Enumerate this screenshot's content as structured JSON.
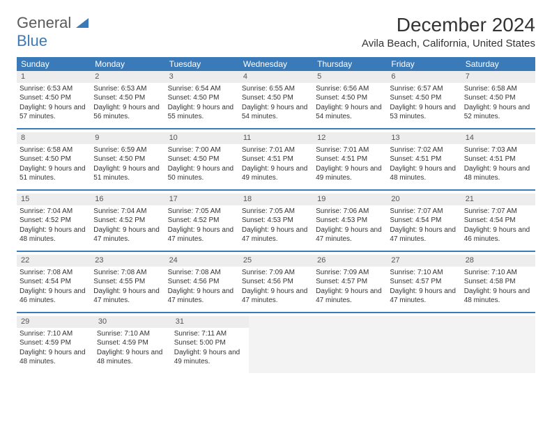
{
  "logo": {
    "general": "General",
    "blue": "Blue"
  },
  "title": "December 2024",
  "location": "Avila Beach, California, United States",
  "day_headers": [
    "Sunday",
    "Monday",
    "Tuesday",
    "Wednesday",
    "Thursday",
    "Friday",
    "Saturday"
  ],
  "colors": {
    "header_bg": "#3a7ab8",
    "logo_blue": "#3a7ab8",
    "daynum_bg": "#ededed",
    "empty_bg": "#f3f3f3",
    "text": "#333"
  },
  "weeks": [
    [
      {
        "n": "1",
        "sr": "6:53 AM",
        "ss": "4:50 PM",
        "dl": "9 hours and 57 minutes."
      },
      {
        "n": "2",
        "sr": "6:53 AM",
        "ss": "4:50 PM",
        "dl": "9 hours and 56 minutes."
      },
      {
        "n": "3",
        "sr": "6:54 AM",
        "ss": "4:50 PM",
        "dl": "9 hours and 55 minutes."
      },
      {
        "n": "4",
        "sr": "6:55 AM",
        "ss": "4:50 PM",
        "dl": "9 hours and 54 minutes."
      },
      {
        "n": "5",
        "sr": "6:56 AM",
        "ss": "4:50 PM",
        "dl": "9 hours and 54 minutes."
      },
      {
        "n": "6",
        "sr": "6:57 AM",
        "ss": "4:50 PM",
        "dl": "9 hours and 53 minutes."
      },
      {
        "n": "7",
        "sr": "6:58 AM",
        "ss": "4:50 PM",
        "dl": "9 hours and 52 minutes."
      }
    ],
    [
      {
        "n": "8",
        "sr": "6:58 AM",
        "ss": "4:50 PM",
        "dl": "9 hours and 51 minutes."
      },
      {
        "n": "9",
        "sr": "6:59 AM",
        "ss": "4:50 PM",
        "dl": "9 hours and 51 minutes."
      },
      {
        "n": "10",
        "sr": "7:00 AM",
        "ss": "4:50 PM",
        "dl": "9 hours and 50 minutes."
      },
      {
        "n": "11",
        "sr": "7:01 AM",
        "ss": "4:51 PM",
        "dl": "9 hours and 49 minutes."
      },
      {
        "n": "12",
        "sr": "7:01 AM",
        "ss": "4:51 PM",
        "dl": "9 hours and 49 minutes."
      },
      {
        "n": "13",
        "sr": "7:02 AM",
        "ss": "4:51 PM",
        "dl": "9 hours and 48 minutes."
      },
      {
        "n": "14",
        "sr": "7:03 AM",
        "ss": "4:51 PM",
        "dl": "9 hours and 48 minutes."
      }
    ],
    [
      {
        "n": "15",
        "sr": "7:04 AM",
        "ss": "4:52 PM",
        "dl": "9 hours and 48 minutes."
      },
      {
        "n": "16",
        "sr": "7:04 AM",
        "ss": "4:52 PM",
        "dl": "9 hours and 47 minutes."
      },
      {
        "n": "17",
        "sr": "7:05 AM",
        "ss": "4:52 PM",
        "dl": "9 hours and 47 minutes."
      },
      {
        "n": "18",
        "sr": "7:05 AM",
        "ss": "4:53 PM",
        "dl": "9 hours and 47 minutes."
      },
      {
        "n": "19",
        "sr": "7:06 AM",
        "ss": "4:53 PM",
        "dl": "9 hours and 47 minutes."
      },
      {
        "n": "20",
        "sr": "7:07 AM",
        "ss": "4:54 PM",
        "dl": "9 hours and 47 minutes."
      },
      {
        "n": "21",
        "sr": "7:07 AM",
        "ss": "4:54 PM",
        "dl": "9 hours and 46 minutes."
      }
    ],
    [
      {
        "n": "22",
        "sr": "7:08 AM",
        "ss": "4:54 PM",
        "dl": "9 hours and 46 minutes."
      },
      {
        "n": "23",
        "sr": "7:08 AM",
        "ss": "4:55 PM",
        "dl": "9 hours and 47 minutes."
      },
      {
        "n": "24",
        "sr": "7:08 AM",
        "ss": "4:56 PM",
        "dl": "9 hours and 47 minutes."
      },
      {
        "n": "25",
        "sr": "7:09 AM",
        "ss": "4:56 PM",
        "dl": "9 hours and 47 minutes."
      },
      {
        "n": "26",
        "sr": "7:09 AM",
        "ss": "4:57 PM",
        "dl": "9 hours and 47 minutes."
      },
      {
        "n": "27",
        "sr": "7:10 AM",
        "ss": "4:57 PM",
        "dl": "9 hours and 47 minutes."
      },
      {
        "n": "28",
        "sr": "7:10 AM",
        "ss": "4:58 PM",
        "dl": "9 hours and 48 minutes."
      }
    ],
    [
      {
        "n": "29",
        "sr": "7:10 AM",
        "ss": "4:59 PM",
        "dl": "9 hours and 48 minutes."
      },
      {
        "n": "30",
        "sr": "7:10 AM",
        "ss": "4:59 PM",
        "dl": "9 hours and 48 minutes."
      },
      {
        "n": "31",
        "sr": "7:11 AM",
        "ss": "5:00 PM",
        "dl": "9 hours and 49 minutes."
      },
      null,
      null,
      null,
      null
    ]
  ],
  "labels": {
    "sunrise": "Sunrise:",
    "sunset": "Sunset:",
    "daylight": "Daylight:"
  }
}
